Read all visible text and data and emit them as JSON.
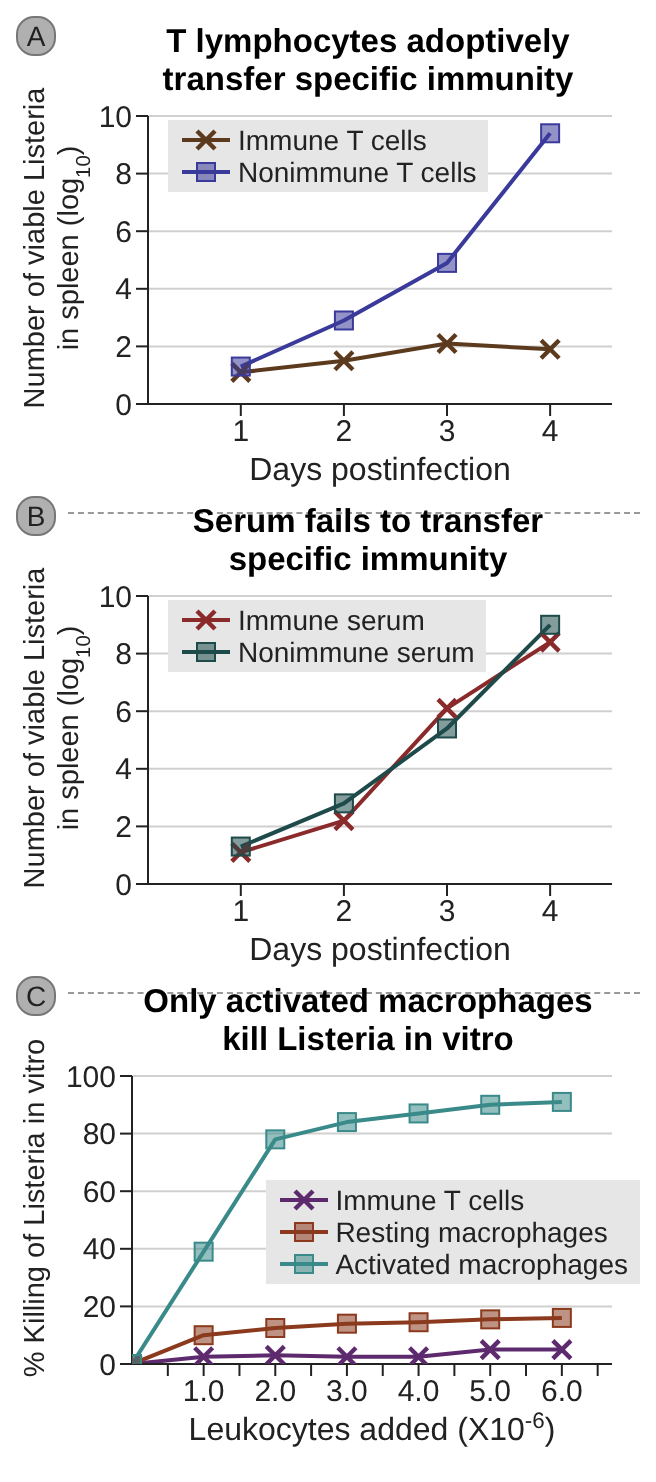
{
  "chart_data": [
    {
      "type": "line",
      "title": "T lymphocytes adoptively transfer specific immunity",
      "xlabel": "Days  postinfection",
      "ylabel": "Number of viable Listeria in spleen (log$_{10}$)",
      "annotations": [
        "A"
      ],
      "x": [
        1,
        2,
        3,
        4
      ],
      "xlim": [
        0.1,
        4.6
      ],
      "xticks": [
        1,
        2,
        3,
        4
      ],
      "ylim": [
        0,
        10
      ],
      "yticks": [
        0,
        2,
        4,
        6,
        8,
        10
      ],
      "grid": "y",
      "legend": "top left",
      "series": [
        {
          "name": "Immune T cells",
          "color": "#5c3a1e",
          "marker": "cross",
          "values": [
            1.1,
            1.5,
            2.1,
            1.9
          ]
        },
        {
          "name": "Nonimmune T cells",
          "color": "#3a3a9a",
          "marker": "square",
          "values": [
            1.3,
            2.9,
            4.9,
            9.4
          ]
        }
      ]
    },
    {
      "type": "line",
      "title": "Serum fails to transfer specific immunity",
      "xlabel": "Days  postinfection",
      "ylabel": "Number of viable Listeria in spleen (log$_{10}$)",
      "annotations": [
        "B"
      ],
      "x": [
        1,
        2,
        3,
        4
      ],
      "xlim": [
        0.1,
        4.6
      ],
      "xticks": [
        1,
        2,
        3,
        4
      ],
      "ylim": [
        0,
        10
      ],
      "yticks": [
        0,
        2,
        4,
        6,
        8,
        10
      ],
      "grid": "y",
      "legend": "top left",
      "series": [
        {
          "name": "Immune serum",
          "color": "#8b2a2a",
          "marker": "cross",
          "values": [
            1.1,
            2.2,
            6.1,
            8.4
          ]
        },
        {
          "name": "Nonimmune serum",
          "color": "#1e4a4a",
          "marker": "square",
          "values": [
            1.3,
            2.8,
            5.4,
            9.0
          ]
        }
      ]
    },
    {
      "type": "line",
      "title": "Only activated macrophages kill Listeria in vitro",
      "xlabel": "Leukocytes added (X10$^{-6}$)",
      "ylabel": "% Killing of Listeria in vitro",
      "annotations": [
        "C"
      ],
      "x": [
        0,
        1,
        2,
        3,
        4,
        5,
        6
      ],
      "xlim": [
        0,
        6.7
      ],
      "xticks": [
        {
          "value": 0.5,
          "label": null
        },
        {
          "value": 1,
          "label": "1.0"
        },
        {
          "value": 1.5,
          "label": null
        },
        {
          "value": 2,
          "label": "2.0"
        },
        {
          "value": 2.5,
          "label": null
        },
        {
          "value": 3,
          "label": "3.0"
        },
        {
          "value": 3.5,
          "label": null
        },
        {
          "value": 4,
          "label": "4.0"
        },
        {
          "value": 4.5,
          "label": null
        },
        {
          "value": 5,
          "label": "5.0"
        },
        {
          "value": 5.5,
          "label": null
        },
        {
          "value": 6,
          "label": "6.0"
        },
        {
          "value": 6.5,
          "label": null
        }
      ],
      "ylim": [
        0,
        100
      ],
      "yticks": [
        0,
        20,
        40,
        60,
        80,
        100
      ],
      "grid": "y",
      "legend": "right",
      "series": [
        {
          "name": "Immune T cells",
          "color": "#5e2a6e",
          "marker": "cross",
          "values": [
            0,
            2.5,
            3,
            2.5,
            2.5,
            5,
            5
          ]
        },
        {
          "name": "Resting macrophages",
          "color": "#8b3a1e",
          "marker": "square",
          "values": [
            0,
            10,
            12.5,
            14,
            14.5,
            15.5,
            16
          ]
        },
        {
          "name": "Activated macrophages",
          "color": "#3a8a8a",
          "marker": "square",
          "values": [
            0,
            39,
            78,
            84,
            87,
            90,
            91
          ]
        }
      ]
    }
  ]
}
